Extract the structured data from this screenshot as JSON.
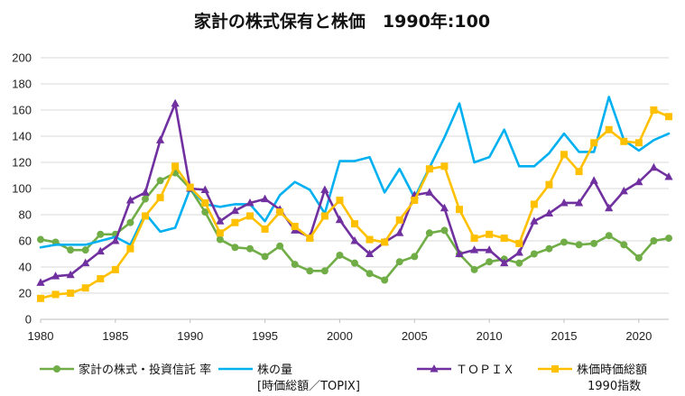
{
  "chart_data": {
    "type": "line",
    "title": "家計の株式保有と株価　1990年:100",
    "xlabel": "",
    "ylabel": "",
    "xlim": [
      1980,
      2022
    ],
    "ylim": [
      0,
      200
    ],
    "x_ticks": [
      1980,
      1985,
      1990,
      1995,
      2000,
      2005,
      2010,
      2015,
      2020
    ],
    "y_ticks": [
      0,
      20,
      40,
      60,
      80,
      100,
      120,
      140,
      160,
      180,
      200
    ],
    "grid": "horizontal",
    "legend_position": "bottom",
    "x": [
      1980,
      1981,
      1982,
      1983,
      1984,
      1985,
      1986,
      1987,
      1988,
      1989,
      1990,
      1991,
      1992,
      1993,
      1994,
      1995,
      1996,
      1997,
      1998,
      1999,
      2000,
      2001,
      2002,
      2003,
      2004,
      2005,
      2006,
      2007,
      2008,
      2009,
      2010,
      2011,
      2012,
      2013,
      2014,
      2015,
      2016,
      2017,
      2018,
      2019,
      2020,
      2021,
      2022
    ],
    "series": [
      {
        "name": "家計の株式・投資信託 率",
        "color": "#70ad47",
        "marker": "circle",
        "values": [
          61,
          59,
          53,
          53,
          65,
          65,
          74,
          92,
          106,
          112,
          100,
          82,
          61,
          55,
          54,
          48,
          56,
          42,
          37,
          37,
          49,
          43,
          35,
          30,
          44,
          48,
          66,
          68,
          50,
          38,
          44,
          46,
          43,
          50,
          54,
          59,
          57,
          58,
          64,
          57,
          47,
          60,
          62
        ]
      },
      {
        "name": "株の量",
        "name_line2": "[時価総額／TOPIX]",
        "color": "#00b0f0",
        "marker": "none",
        "values": [
          55,
          57,
          57,
          57,
          60,
          63,
          57,
          81,
          67,
          70,
          100,
          88,
          86,
          88,
          88,
          75,
          95,
          105,
          99,
          81,
          121,
          121,
          124,
          97,
          115,
          93,
          116,
          139,
          165,
          120,
          124,
          145,
          117,
          117,
          127,
          142,
          128,
          128,
          170,
          137,
          129,
          137,
          142
        ]
      },
      {
        "name": "ＴＯＰＩＸ",
        "color": "#7030a0",
        "marker": "triangle",
        "values": [
          28,
          33,
          34,
          43,
          52,
          60,
          91,
          97,
          137,
          165,
          100,
          99,
          75,
          83,
          89,
          92,
          84,
          68,
          63,
          99,
          76,
          60,
          50,
          59,
          66,
          95,
          97,
          85,
          50,
          53,
          53,
          43,
          51,
          75,
          81,
          89,
          89,
          106,
          85,
          98,
          105,
          116,
          109
        ]
      },
      {
        "name": "株価時価総額",
        "name_line2": "1990指数",
        "color": "#ffc000",
        "marker": "square",
        "values": [
          16,
          19,
          20,
          24,
          31,
          38,
          54,
          79,
          93,
          117,
          101,
          89,
          66,
          74,
          79,
          69,
          82,
          71,
          62,
          79,
          91,
          73,
          61,
          59,
          76,
          91,
          115,
          117,
          84,
          62,
          65,
          62,
          58,
          88,
          103,
          126,
          113,
          135,
          145,
          136,
          135,
          160,
          155
        ]
      }
    ]
  }
}
